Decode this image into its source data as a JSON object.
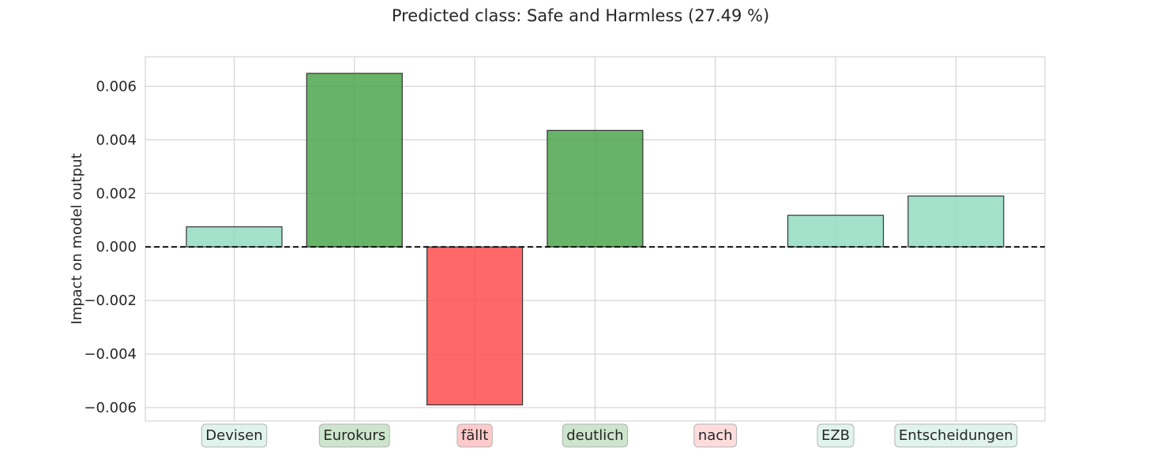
{
  "chart_data": {
    "type": "bar",
    "title": "Predicted class: Safe and Harmless (27.49 %)",
    "ylabel": "Impact on model output",
    "xlabel": "",
    "ylim": [
      -0.0065,
      0.0071
    ],
    "yticks": [
      -0.006,
      -0.004,
      -0.002,
      0.0,
      0.002,
      0.004,
      0.006
    ],
    "ytick_labels": [
      "−0.006",
      "−0.004",
      "−0.002",
      "0.000",
      "0.002",
      "0.004",
      "0.006"
    ],
    "categories": [
      "Devisen",
      "Eurokurs",
      "fällt",
      "deutlich",
      "nach",
      "EZB",
      "Entscheidungen"
    ],
    "values": [
      0.00075,
      0.00648,
      -0.0059,
      0.00435,
      0.0,
      0.00118,
      0.0019
    ],
    "grid": true,
    "zero_line": "dashed",
    "colors": {
      "strong_positive": "#4ca64c",
      "weak_positive": "#93dcc2",
      "negative": "#ff4d4d",
      "label_strong_positive": "#cce5cc",
      "label_weak_positive": "#e0f4ed",
      "label_strong_negative": "#ffcaca",
      "label_weak_negative": "#ffdcdc"
    },
    "bar_classes": [
      "weak_positive",
      "strong_positive",
      "negative",
      "strong_positive",
      "none",
      "weak_positive",
      "weak_positive"
    ],
    "label_classes": [
      "label_weak_positive",
      "label_strong_positive",
      "label_strong_negative",
      "label_strong_positive",
      "label_weak_negative",
      "label_weak_positive",
      "label_weak_positive"
    ]
  }
}
